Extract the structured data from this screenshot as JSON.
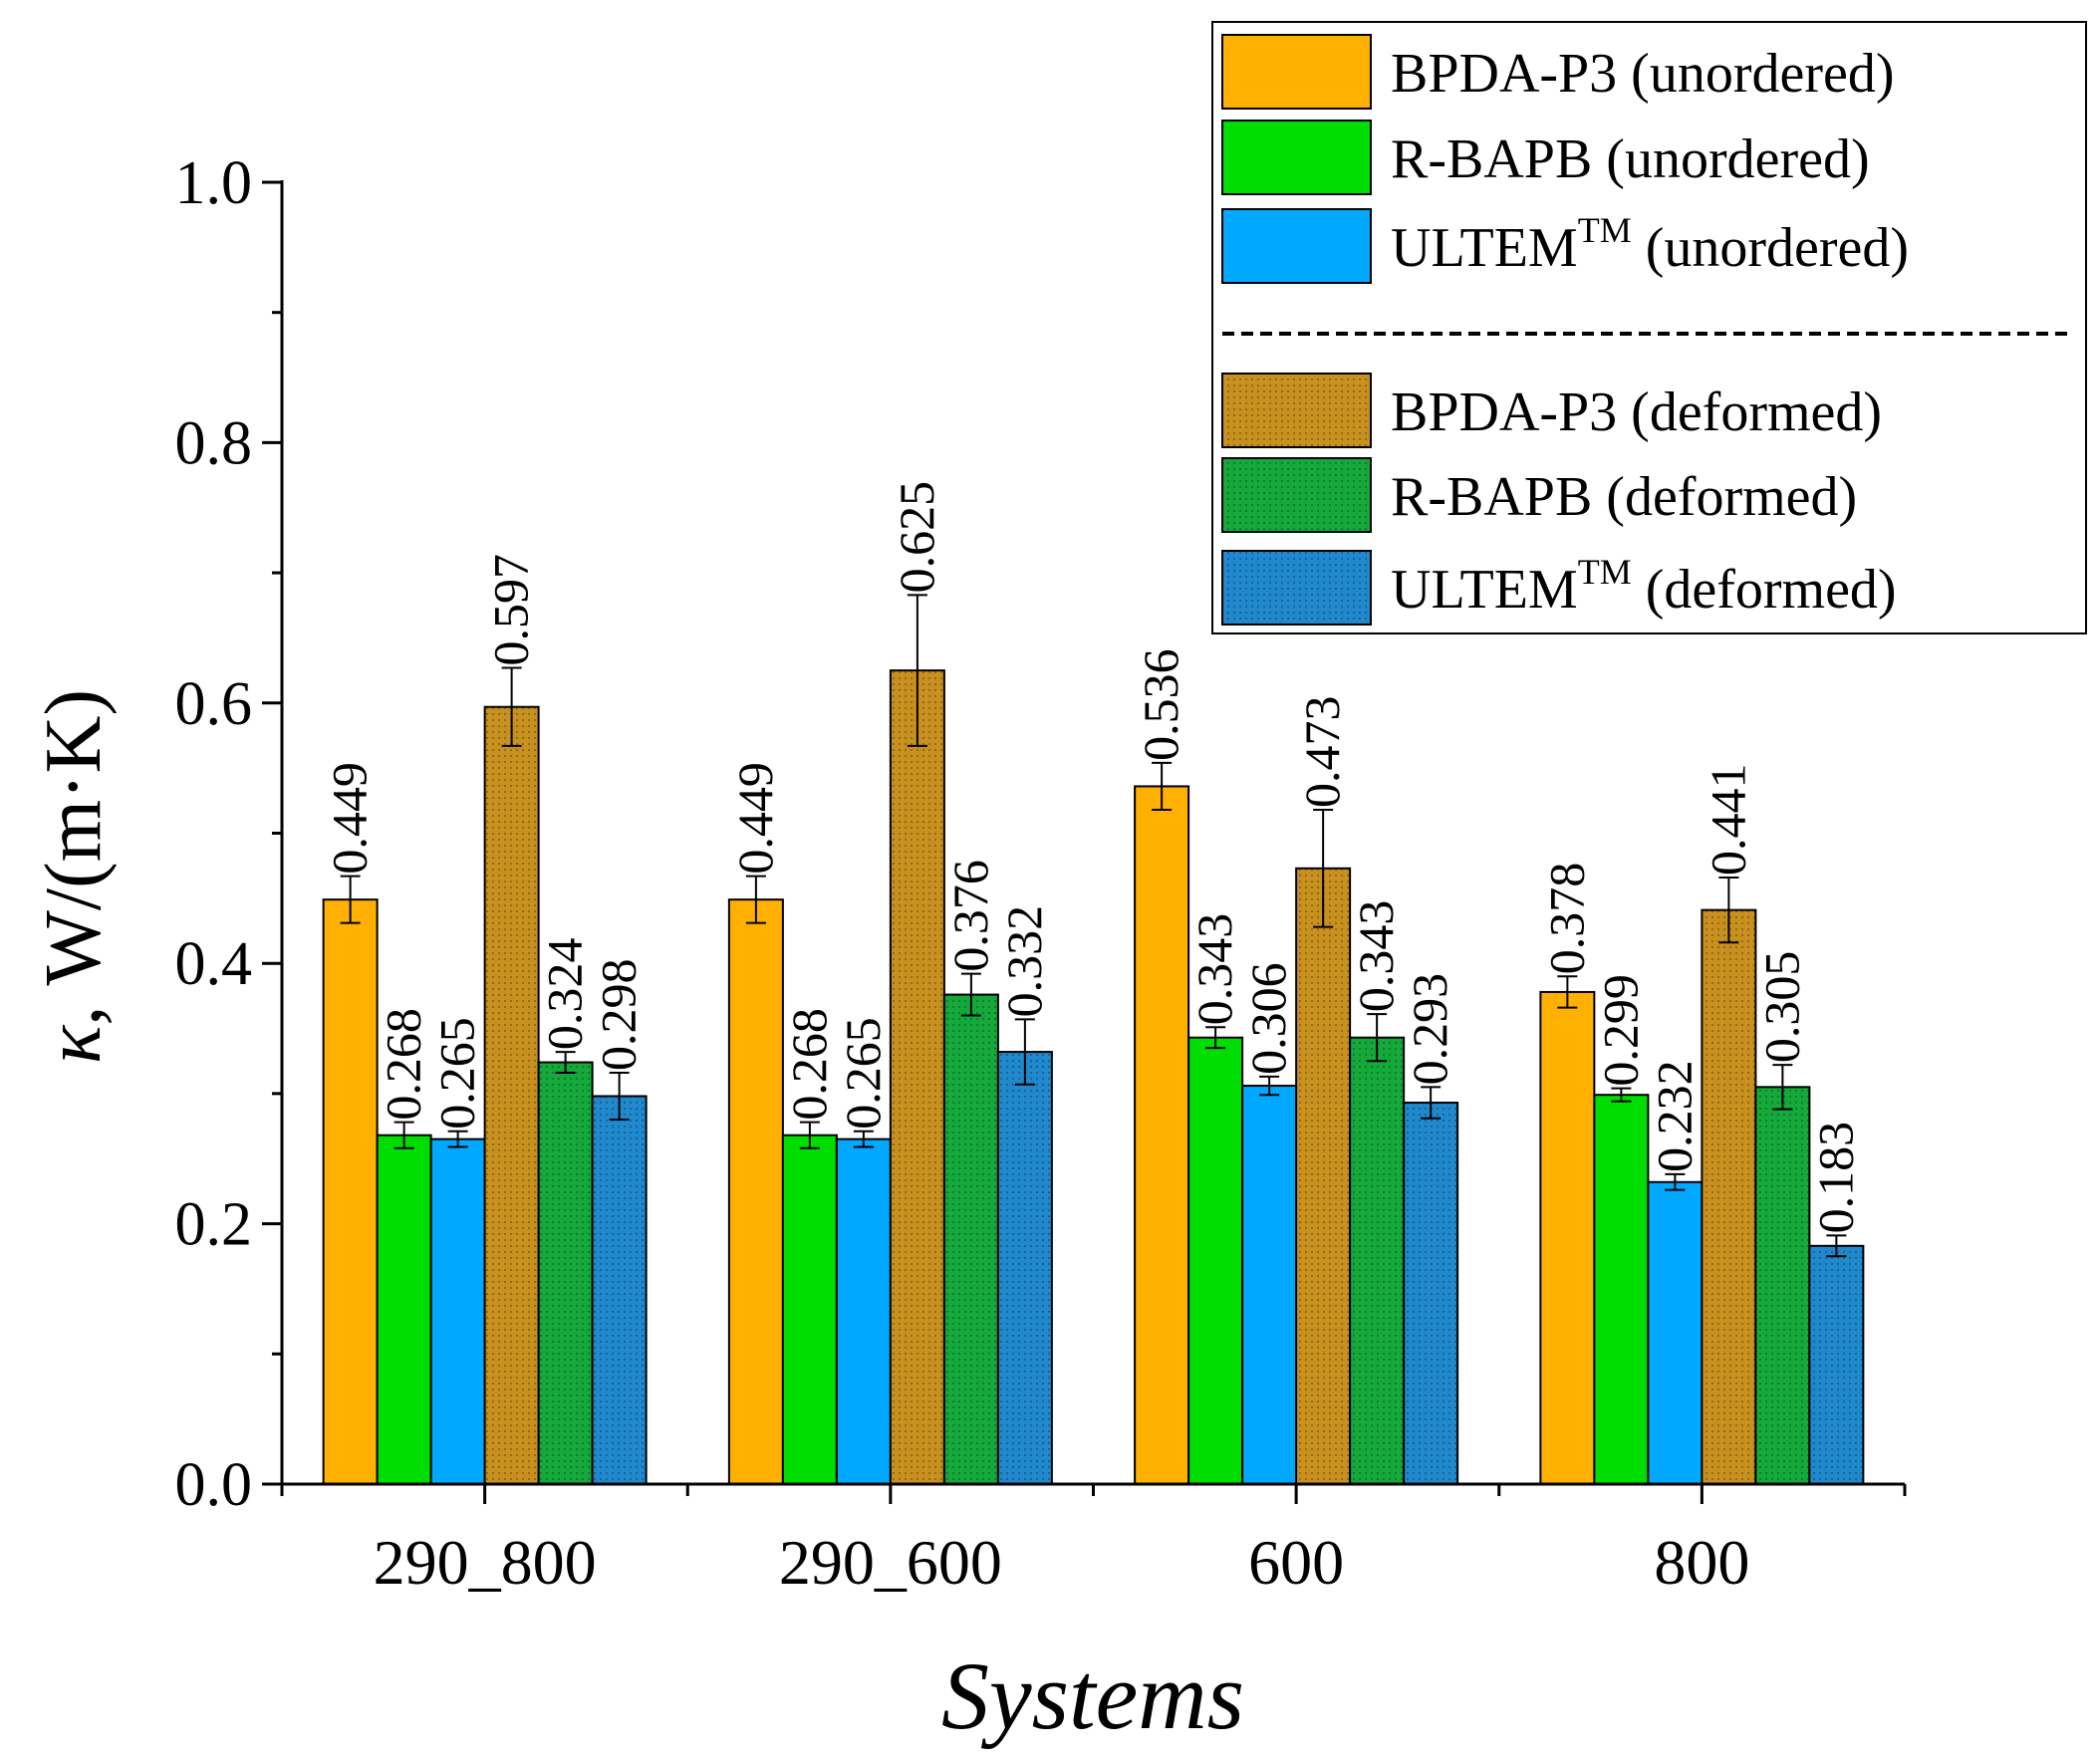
{
  "chart_data": {
    "type": "bar",
    "xlabel": "Systems",
    "ylabel_symbol": "κ",
    "ylabel_rest": ", W/(m·K)",
    "ylim": [
      0,
      1.0
    ],
    "yticks": [
      0.0,
      0.2,
      0.4,
      0.6,
      0.8,
      1.0
    ],
    "ytick_labels": [
      "0.0",
      "0.2",
      "0.4",
      "0.6",
      "0.8",
      "1.0"
    ],
    "yminor_step": 0.1,
    "categories": [
      "290_800",
      "290_600",
      "600",
      "800"
    ],
    "legend_position": "top-right",
    "legend_groups": [
      "unordered",
      "deformed"
    ],
    "series": [
      {
        "name": "BPDA-P3 (unordered)",
        "label_base": "BPDA-P3",
        "label_sup": "",
        "label_state": " (unordered)",
        "group": "unordered",
        "color": "#FFB000",
        "pattern": false,
        "values": [
          0.449,
          0.449,
          0.536,
          0.378
        ],
        "labels": [
          "0.449",
          "0.449",
          "0.536",
          "0.378"
        ],
        "errors": [
          0.018,
          0.018,
          0.018,
          0.012
        ]
      },
      {
        "name": "R-BAPB (unordered)",
        "label_base": "R-BAPB",
        "label_sup": "",
        "label_state": " (unordered)",
        "group": "unordered",
        "color": "#00DD00",
        "pattern": false,
        "values": [
          0.268,
          0.268,
          0.343,
          0.299
        ],
        "labels": [
          "0.268",
          "0.268",
          "0.343",
          "0.299"
        ],
        "errors": [
          0.01,
          0.01,
          0.008,
          0.005
        ]
      },
      {
        "name": "ULTEM (unordered)",
        "label_base": "ULTEM",
        "label_sup": "TM",
        "label_state": " (unordered)",
        "group": "unordered",
        "color": "#00A8FF",
        "pattern": false,
        "values": [
          0.265,
          0.265,
          0.306,
          0.232
        ],
        "labels": [
          "0.265",
          "0.265",
          "0.306",
          "0.232"
        ],
        "errors": [
          0.006,
          0.006,
          0.007,
          0.006
        ]
      },
      {
        "name": "BPDA-P3 (deformed)",
        "label_base": "BPDA-P3",
        "label_sup": "",
        "label_state": " (deformed)",
        "group": "deformed",
        "color": "#C8901E",
        "pattern": true,
        "values": [
          0.597,
          0.625,
          0.473,
          0.441
        ],
        "labels": [
          "0.597",
          "0.625",
          "0.473",
          "0.441"
        ],
        "errors": [
          0.03,
          0.058,
          0.045,
          0.025
        ]
      },
      {
        "name": "R-BAPB (deformed)",
        "label_base": "R-BAPB",
        "label_sup": "",
        "label_state": " (deformed)",
        "group": "deformed",
        "color": "#15A83A",
        "pattern": true,
        "values": [
          0.324,
          0.376,
          0.343,
          0.305
        ],
        "labels": [
          "0.324",
          "0.376",
          "0.343",
          "0.305"
        ],
        "errors": [
          0.008,
          0.016,
          0.018,
          0.017
        ]
      },
      {
        "name": "ULTEM (deformed)",
        "label_base": "ULTEM",
        "label_sup": "TM",
        "label_state": " (deformed)",
        "group": "deformed",
        "color": "#2088CC",
        "pattern": true,
        "values": [
          0.298,
          0.332,
          0.293,
          0.183
        ],
        "labels": [
          "0.298",
          "0.332",
          "0.293",
          "0.183"
        ],
        "errors": [
          0.018,
          0.025,
          0.012,
          0.008
        ]
      }
    ]
  }
}
